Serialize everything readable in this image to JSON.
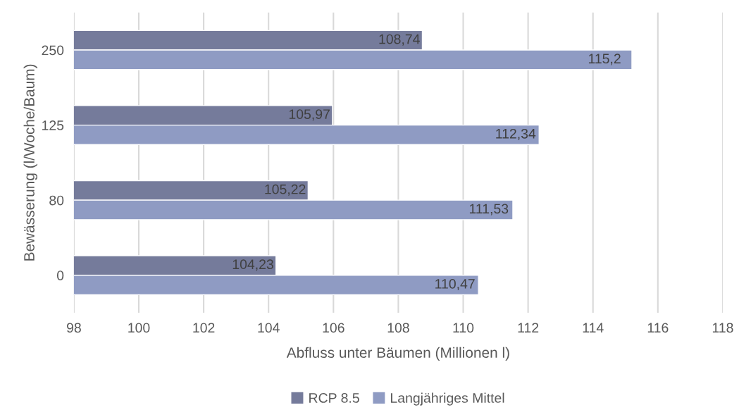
{
  "chart_data": {
    "type": "bar",
    "orientation": "horizontal",
    "categories": [
      "250",
      "125",
      "80",
      "0"
    ],
    "xlabel": "Abfluss unter Bäumen (Millionen l)",
    "ylabel": "Bewässerung (l/Woche/Baum)",
    "xlim": [
      98,
      118
    ],
    "xticks": [
      98,
      100,
      102,
      104,
      106,
      108,
      110,
      112,
      114,
      116,
      118
    ],
    "grid": "x",
    "legend": "bottom",
    "series": [
      {
        "name": "RCP 8.5",
        "color": "#757b9b",
        "values": [
          108.74,
          105.97,
          105.22,
          104.23
        ],
        "value_labels": [
          "108,74",
          "105,97",
          "105,22",
          "104,23"
        ]
      },
      {
        "name": "Langjähriges Mittel",
        "color": "#8f9bc3",
        "values": [
          115.2,
          112.34,
          111.53,
          110.47
        ],
        "value_labels": [
          "115,2",
          "112,34",
          "111,53",
          "110,47"
        ]
      }
    ]
  }
}
